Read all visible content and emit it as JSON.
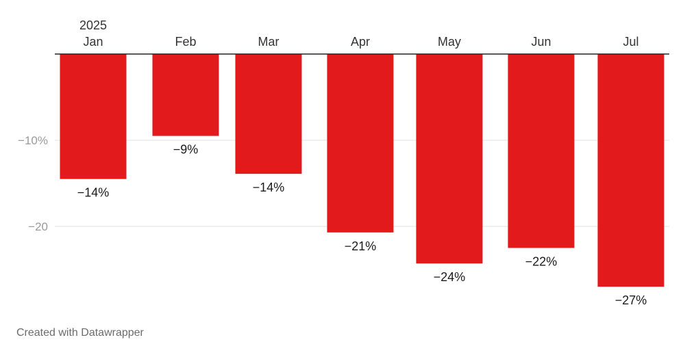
{
  "chart_data": {
    "type": "bar",
    "year_label": "2025",
    "categories": [
      "Jan",
      "Feb",
      "Mar",
      "Apr",
      "May",
      "Jun",
      "Jul"
    ],
    "values": [
      -14.5,
      -9.5,
      -13.9,
      -20.7,
      -24.3,
      -22.5,
      -27.0
    ],
    "data_labels": [
      "−14%",
      "−9%",
      "−14%",
      "−21%",
      "−24%",
      "−22%",
      "−27%"
    ],
    "y_ticks": [
      -10,
      -20
    ],
    "y_tick_labels": [
      "−10%",
      "−20"
    ],
    "ylim": [
      -28,
      0
    ],
    "grid": true,
    "bar_color": "#e31a1c",
    "axis_color": "#222222",
    "grid_color": "#e2e2e2"
  },
  "footer": {
    "credit": "Created with Datawrapper"
  }
}
